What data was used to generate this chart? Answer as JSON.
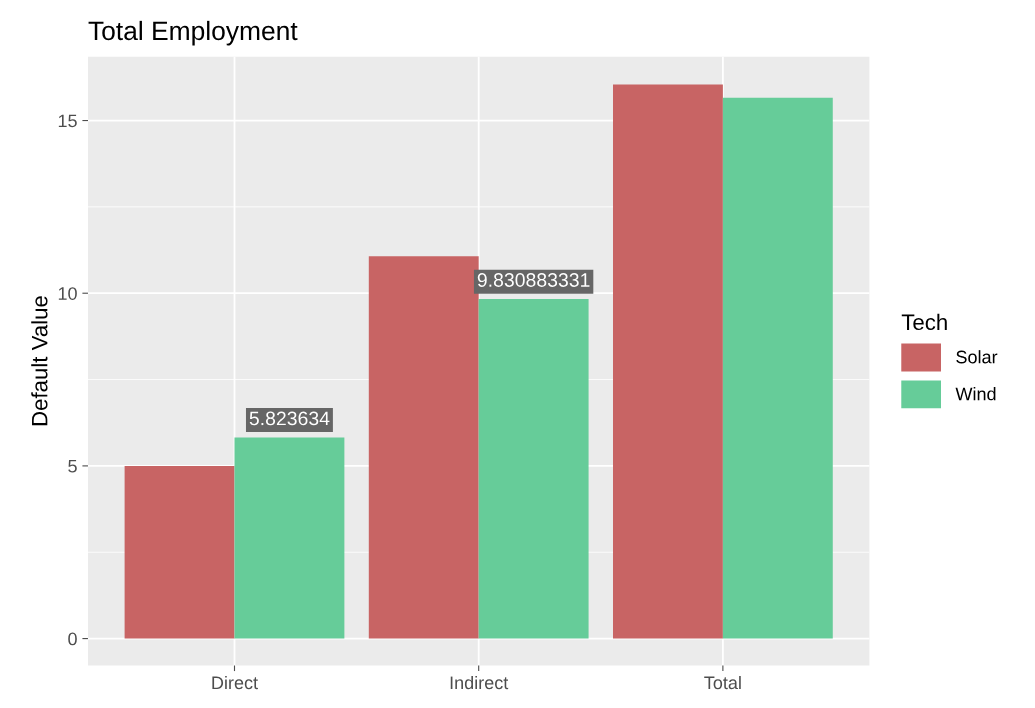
{
  "chart_data": {
    "type": "bar",
    "title": "Total Employment",
    "ylabel": "Default Value",
    "legend_title": "Tech",
    "categories": [
      "Direct",
      "Indirect",
      "Total"
    ],
    "series": [
      {
        "name": "Solar",
        "color": "#c86464",
        "values": [
          5.0,
          11.07,
          16.04
        ]
      },
      {
        "name": "Wind",
        "color": "#66cc99",
        "values": [
          5.823634,
          9.830883331,
          15.66
        ],
        "value_labels": [
          "5.823634",
          "9.830883331",
          null
        ]
      }
    ],
    "ylim": [
      -0.78,
      16.85
    ],
    "yticks": [
      0,
      5,
      10,
      15
    ],
    "grid": true,
    "legend": "right"
  }
}
